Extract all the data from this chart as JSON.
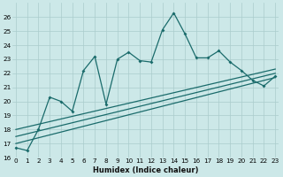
{
  "xlabel": "Humidex (Indice chaleur)",
  "bg_color": "#cce8e8",
  "grid_color": "#aacccc",
  "line_color": "#1a6b6b",
  "x_values": [
    0,
    1,
    2,
    3,
    4,
    5,
    6,
    7,
    8,
    9,
    10,
    11,
    12,
    13,
    14,
    15,
    16,
    17,
    18,
    19,
    20,
    21,
    22,
    23
  ],
  "line1_y": [
    16.7,
    16.5,
    18.0,
    20.3,
    20.0,
    19.3,
    22.2,
    23.2,
    19.8,
    23.0,
    23.5,
    22.9,
    22.8,
    25.1,
    26.3,
    24.8,
    23.1,
    23.1,
    23.6,
    22.8,
    22.2,
    21.5,
    21.1,
    21.8
  ],
  "trend1_x": [
    0,
    23
  ],
  "trend1_y": [
    17.0,
    21.7
  ],
  "trend2_x": [
    0,
    23
  ],
  "trend2_y": [
    17.5,
    22.0
  ],
  "trend3_x": [
    0,
    23
  ],
  "trend3_y": [
    18.0,
    22.3
  ],
  "ylim": [
    16,
    27
  ],
  "ytick_min": 16,
  "ytick_max": 26,
  "xlim": [
    -0.3,
    23.3
  ],
  "xtick_labels": [
    "0",
    "1",
    "2",
    "3",
    "4",
    "5",
    "6",
    "7",
    "8",
    "9",
    "10",
    "11",
    "12",
    "13",
    "14",
    "15",
    "16",
    "17",
    "18",
    "19",
    "20",
    "21",
    "22",
    "23"
  ],
  "yticks": [
    16,
    17,
    18,
    19,
    20,
    21,
    22,
    23,
    24,
    25,
    26
  ],
  "xlabel_fontsize": 6.0,
  "tick_fontsize": 5.2,
  "linewidth": 0.9,
  "marker_size": 2.0
}
